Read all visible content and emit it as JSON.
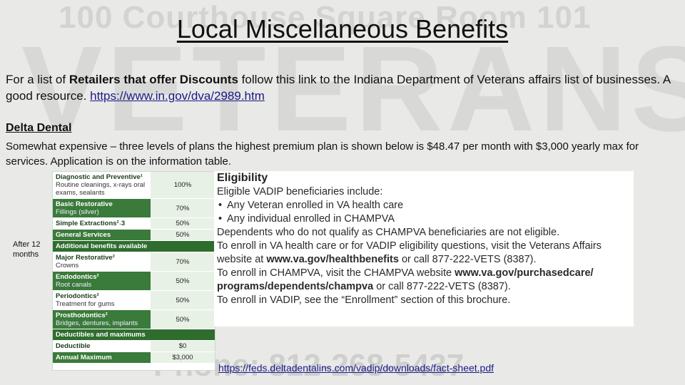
{
  "background": {
    "address_text": "100 Courthouse Square Room 101",
    "veterans_text": "VETERANS",
    "phone_text": "Phone: 812-268-5437"
  },
  "slide": {
    "title": "Local Miscellaneous Benefits",
    "intro_pre": "For a list of ",
    "intro_bold": "Retailers that offer Discounts",
    "intro_post": " follow this link to the Indiana Department of Veterans affairs list of businesses. A good resource. ",
    "intro_link": "https://www.in.gov/dva/2989.htm",
    "section_heading": "Delta Dental",
    "section_desc": "Somewhat expensive – three levels of plans the highest premium plan is shown below is $48.47 per month with $3,000 yearly max for services. Application is on the information table.",
    "after_label": "After 12 months",
    "footer_link": "https://feds.deltadentalins.com/vadip/downloads/fact-sheet.pdf"
  },
  "plan_table": {
    "rows": [
      {
        "name": "Diagnostic and Preventive¹",
        "sub": "Routine cleanings, x-rays oral exams, sealants",
        "pct": "100%",
        "style": "light"
      },
      {
        "name": "Basic Restorative",
        "sub": "Fillings (silver)",
        "pct": "70%",
        "style": "dark"
      },
      {
        "name": "Simple Extractions²˒3",
        "sub": "",
        "pct": "50%",
        "style": "light"
      },
      {
        "name": "General Services",
        "sub": "",
        "pct": "50%",
        "style": "dark"
      },
      {
        "name": "Additional benefits available",
        "sub": "",
        "pct": "",
        "style": "header"
      },
      {
        "name": "Major Restorative²",
        "sub": "Crowns",
        "pct": "70%",
        "style": "light"
      },
      {
        "name": "Endodontics²",
        "sub": "Root canals",
        "pct": "50%",
        "style": "dark"
      },
      {
        "name": "Periodontics²",
        "sub": "Treatment for gums",
        "pct": "50%",
        "style": "light"
      },
      {
        "name": "Prosthodontics²",
        "sub": "Bridges, dentures, implants",
        "pct": "50%",
        "style": "dark"
      },
      {
        "name": "Deductibles and maximums",
        "sub": "",
        "pct": "",
        "style": "header"
      },
      {
        "name": "Deductible",
        "sub": "",
        "pct": "$0",
        "style": "light"
      },
      {
        "name": "Annual Maximum",
        "sub": "",
        "pct": "$3,000",
        "style": "dark"
      }
    ]
  },
  "eligibility": {
    "heading": "Eligibility",
    "intro": "Eligible VADIP beneficiaries include:",
    "bullets": [
      "Any Veteran enrolled in VA health care",
      "Any individual enrolled in CHAMPVA"
    ],
    "para1": "Dependents who do not qualify as CHAMPVA beneficiaries are not eligible.",
    "para2_pre": "To enroll in VA health care or for VADIP eligibility questions, visit the Veterans Affairs website at ",
    "para2_web": "www.va.gov/healthbenefits",
    "para2_post": " or call 877-222-VETS (8387).",
    "para3_pre": "To enroll in CHAMPVA, visit the CHAMPVA website ",
    "para3_web": "www.va.gov/purchasedcare/ programs/dependents/champva",
    "para3_post": " or call 877-222-VETS (8387).",
    "para4": "To enroll in VADIP, see the “Enrollment” section of this brochure."
  }
}
